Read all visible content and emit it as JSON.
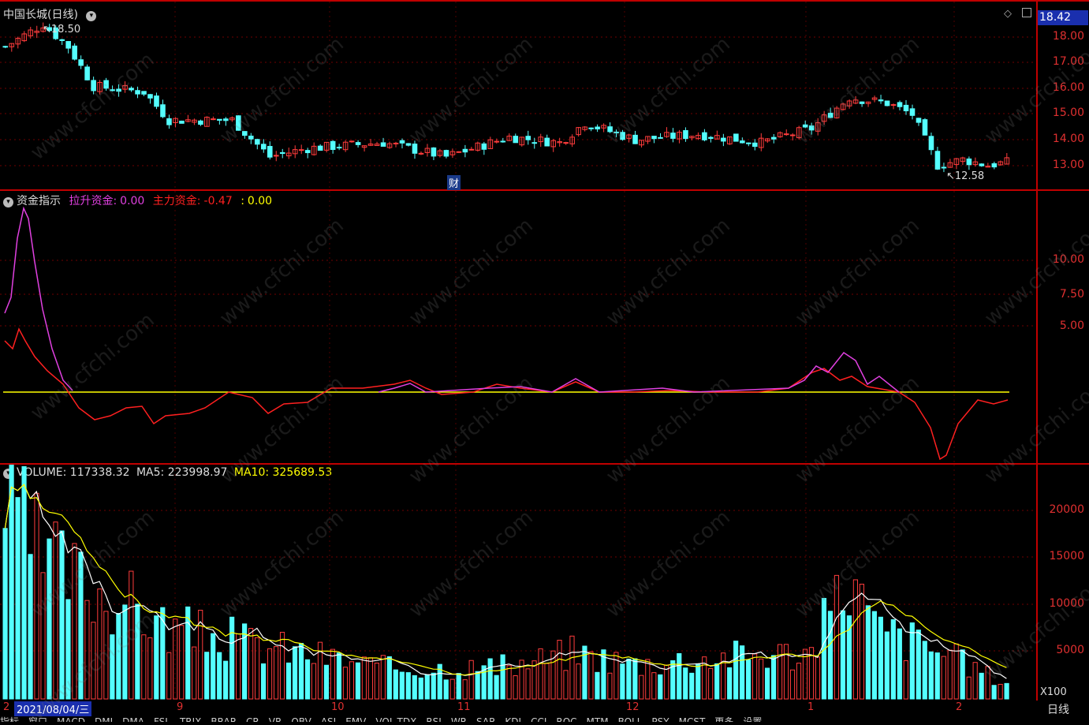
{
  "main_panel": {
    "title": "中国长城(日线)",
    "price_label": "18.42",
    "high_marker": "18.50",
    "low_marker": "12.58",
    "finance_badge": "财",
    "yaxis": [
      "18.00",
      "17.00",
      "16.00",
      "15.00",
      "14.00",
      "13.00"
    ]
  },
  "indicator_panel": {
    "name": "资金指示",
    "series1_label": "拉升资金:",
    "series1_value": "0.00",
    "series2_label": "主力资金:",
    "series2_value": "-0.47",
    "series3_label": ":",
    "series3_value": "0.00",
    "yaxis": [
      "10.00",
      "7.50",
      "5.00"
    ],
    "colors": {
      "series1": "#e040e0",
      "series2": "#ff2020",
      "series3": "#ffff00"
    }
  },
  "volume_panel": {
    "label": "VOLUME:",
    "value": "117338.32",
    "ma5_label": "MA5:",
    "ma5_value": "223998.97",
    "ma10_label": "MA10:",
    "ma10_value": "325689.53",
    "yaxis": [
      "20000",
      "15000",
      "10000",
      "5000"
    ],
    "unit": "X100"
  },
  "time_axis": {
    "cursor_date": "2021/08/04/三",
    "first_label": "2",
    "months": [
      "9",
      "10",
      "11",
      "12",
      "1",
      "2"
    ],
    "period": "日线"
  },
  "watermark": "www.cfchi.com",
  "bottom_tabs": [
    "指标",
    "窗口",
    "MACD",
    "DMI",
    "DMA",
    "FSL",
    "TRIX",
    "BRAR",
    "CR",
    "VR",
    "OBV",
    "ASI",
    "EMV",
    "VOL-TDX",
    "RSI",
    "WR",
    "SAR",
    "KDJ",
    "CCI",
    "ROC",
    "MTM",
    "BOLL",
    "PSY",
    "MCST",
    "更多",
    "设置"
  ]
}
